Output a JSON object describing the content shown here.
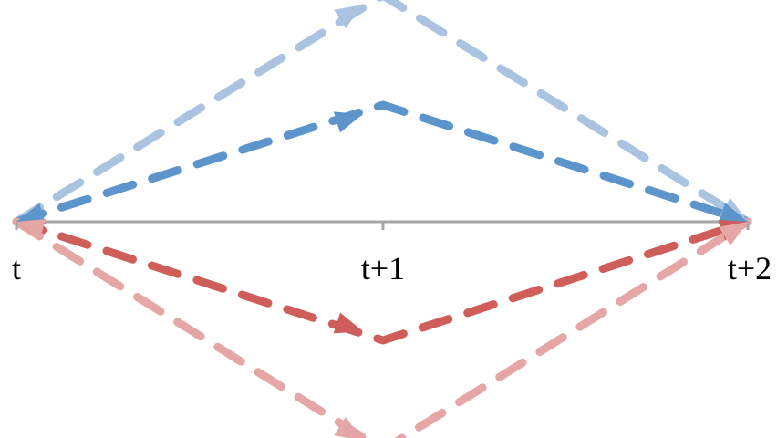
{
  "axis": {
    "ticks": [
      {
        "label": "t"
      },
      {
        "label": "t+1"
      },
      {
        "label": "t+2"
      }
    ],
    "color": "#a6a6a6"
  },
  "paths": [
    {
      "name": "upper-outer",
      "color": "#a9c3e1",
      "direction": "up",
      "level": 2
    },
    {
      "name": "upper-inner",
      "color": "#5b95cb",
      "direction": "up",
      "level": 1
    },
    {
      "name": "lower-inner",
      "color": "#cf5e5b",
      "direction": "down",
      "level": 1
    },
    {
      "name": "lower-outer",
      "color": "#e5a7a6",
      "direction": "down",
      "level": 2
    }
  ]
}
